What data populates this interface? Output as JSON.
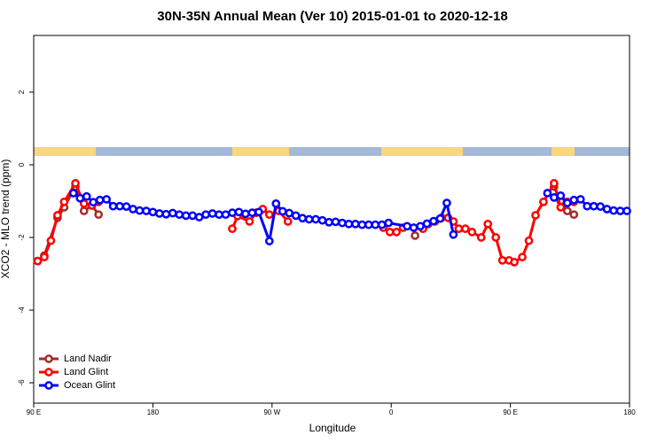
{
  "chart_data": {
    "type": "line",
    "title": "30N-35N Annual Mean (Ver 10)   2015-01-01 to 2020-12-18",
    "x_label": "Longitude",
    "y_label": "XCO2 - MLO trend (ppm)",
    "xlim": [
      90,
      540
    ],
    "ylim": [
      -6.56,
      3.56
    ],
    "xticks": [
      {
        "value": 90,
        "label": "90 E"
      },
      {
        "value": 180,
        "label": "180"
      },
      {
        "value": 270,
        "label": "90 W"
      },
      {
        "value": 360,
        "label": "0"
      },
      {
        "value": 450,
        "label": "90 E"
      },
      {
        "value": 540,
        "label": "180"
      }
    ],
    "yticks": [
      -6,
      -4,
      -2,
      0,
      2
    ],
    "legend": "bottom-left",
    "series": [
      {
        "name": "Land Nadir",
        "color": "#a52a2a",
        "x": [
          93,
          98,
          108,
          113,
          121.5,
          128,
          134,
          139,
          null,
          378,
          null,
          483,
          488,
          493,
          498
        ],
        "values": [
          -2.65,
          -2.5,
          -1.46,
          -1.17,
          -0.6,
          -1.27,
          -1.12,
          -1.37,
          null,
          -1.95,
          null,
          -0.6,
          -1.0,
          -1.27,
          -1.37
        ]
      },
      {
        "name": "Land Glint",
        "color": "#ff0000",
        "x": [
          93,
          98,
          103,
          108,
          113,
          121.5,
          128,
          134,
          139,
          null,
          240,
          244,
          253,
          258,
          263,
          268,
          275,
          282,
          null,
          354,
          359,
          364,
          369,
          384,
          388,
          393,
          398,
          403,
          407,
          411,
          416,
          421,
          428,
          433,
          439,
          444,
          449,
          453,
          459,
          464,
          469,
          475,
          483,
          488,
          493,
          498
        ],
        "values": [
          -2.65,
          -2.54,
          -2.09,
          -1.39,
          -1.02,
          -0.51,
          -1.07,
          -1.12,
          -1.02,
          null,
          -1.76,
          -1.41,
          -1.56,
          -1.32,
          -1.22,
          -1.37,
          -1.27,
          -1.56,
          null,
          -1.73,
          -1.85,
          -1.85,
          -1.73,
          -1.76,
          -1.63,
          -1.56,
          -1.46,
          -1.46,
          -1.56,
          -1.76,
          -1.76,
          -1.85,
          -2.0,
          -1.63,
          -2.0,
          -2.63,
          -2.63,
          -2.68,
          -2.54,
          -2.09,
          -1.39,
          -1.02,
          -0.51,
          -1.17,
          -1.02,
          -1.02
        ]
      },
      {
        "name": "Ocean Glint",
        "color": "#0000ff",
        "x": [
          120,
          125,
          130,
          135,
          140,
          145,
          150,
          155,
          160,
          165,
          170,
          175,
          180,
          185,
          190,
          195,
          200,
          205,
          210,
          215,
          220,
          225,
          230,
          235,
          240,
          245,
          250,
          255,
          260,
          268,
          273,
          278,
          283,
          288,
          293,
          298,
          303,
          308,
          313,
          318,
          323,
          328,
          333,
          338,
          343,
          348,
          353,
          358,
          372,
          377,
          382,
          387,
          392,
          397,
          402,
          407,
          null,
          478,
          483,
          488,
          493,
          498,
          503,
          508,
          513,
          518,
          523,
          528,
          533,
          538
        ],
        "values": [
          -0.78,
          -0.92,
          -0.87,
          -1.03,
          -0.97,
          -0.95,
          -1.14,
          -1.14,
          -1.15,
          -1.22,
          -1.26,
          -1.27,
          -1.3,
          -1.34,
          -1.36,
          -1.33,
          -1.37,
          -1.4,
          -1.4,
          -1.44,
          -1.37,
          -1.34,
          -1.37,
          -1.37,
          -1.32,
          -1.3,
          -1.35,
          -1.32,
          -1.3,
          -2.1,
          -1.07,
          -1.28,
          -1.33,
          -1.4,
          -1.47,
          -1.5,
          -1.5,
          -1.53,
          -1.58,
          -1.57,
          -1.6,
          -1.63,
          -1.63,
          -1.65,
          -1.65,
          -1.65,
          -1.65,
          -1.6,
          -1.69,
          -1.73,
          -1.69,
          -1.62,
          -1.55,
          -1.48,
          -1.05,
          -1.92,
          null,
          -0.78,
          -0.9,
          -0.85,
          -1.05,
          -0.97,
          -0.95,
          -1.14,
          -1.14,
          -1.15,
          -1.22,
          -1.26,
          -1.27,
          -1.27
        ]
      }
    ]
  }
}
